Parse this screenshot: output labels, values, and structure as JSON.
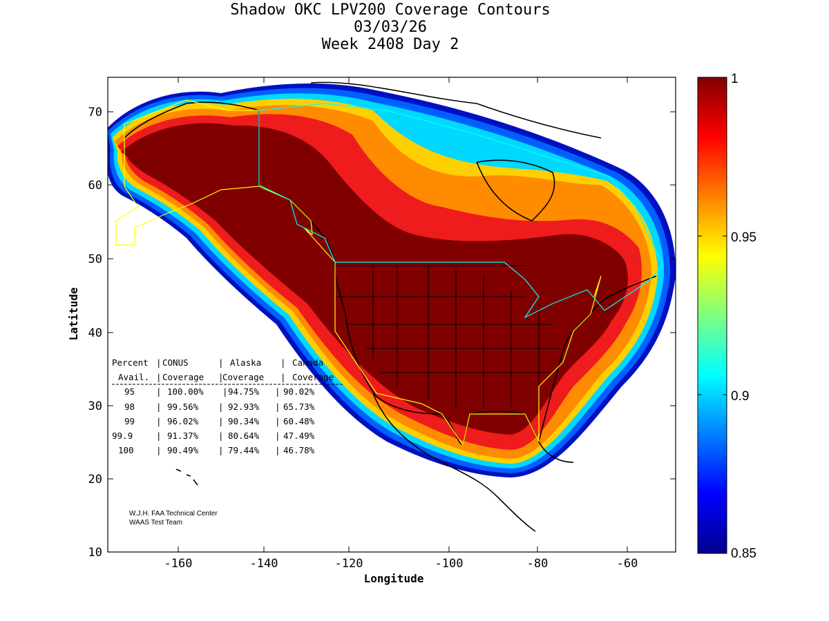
{
  "title": {
    "line1": "Shadow OKC LPV200 Coverage Contours",
    "line2": "03/03/26",
    "line3": "Week 2408 Day 2"
  },
  "axes": {
    "xlabel": "Longitude",
    "ylabel": "Latitude",
    "x_ticks": [
      "-160",
      "-140",
      "-120",
      "-100",
      "-80",
      "-60"
    ],
    "y_ticks": [
      "70",
      "60",
      "50",
      "40",
      "30",
      "20",
      "10"
    ]
  },
  "colorbar": {
    "ticks": [
      "1",
      "0.95",
      "0.9",
      "0.85"
    ],
    "range": [
      0.85,
      1.0
    ],
    "colormap": "jet"
  },
  "stats_table": {
    "header1": [
      "Percent",
      "CONUS",
      "Alaska",
      "Canada"
    ],
    "header2": [
      "Avail.",
      "Coverage",
      "Coverage",
      "Coverage"
    ],
    "rows": [
      [
        "95",
        "100.00%",
        "94.75%",
        "90.02%"
      ],
      [
        "98",
        "99.56%",
        "92.93%",
        "65.73%"
      ],
      [
        "99",
        "96.02%",
        "90.34%",
        "60.48%"
      ],
      [
        "99.9",
        "91.37%",
        "80.64%",
        "47.49%"
      ],
      [
        "100",
        "90.49%",
        "79.44%",
        "46.78%"
      ]
    ]
  },
  "credit": {
    "line1": "W.J.H. FAA Technical Center",
    "line2": "WAAS Test Team"
  },
  "colors": {
    "max_availability": "#800000",
    "red": "#ee1c1c",
    "orange": "#ff8c00",
    "yellow": "#ffe800",
    "cyan": "#00e5ff",
    "blue": "#0030ff",
    "service_boundary_us": "#ffff00",
    "service_boundary_canada": "#00ffff"
  }
}
